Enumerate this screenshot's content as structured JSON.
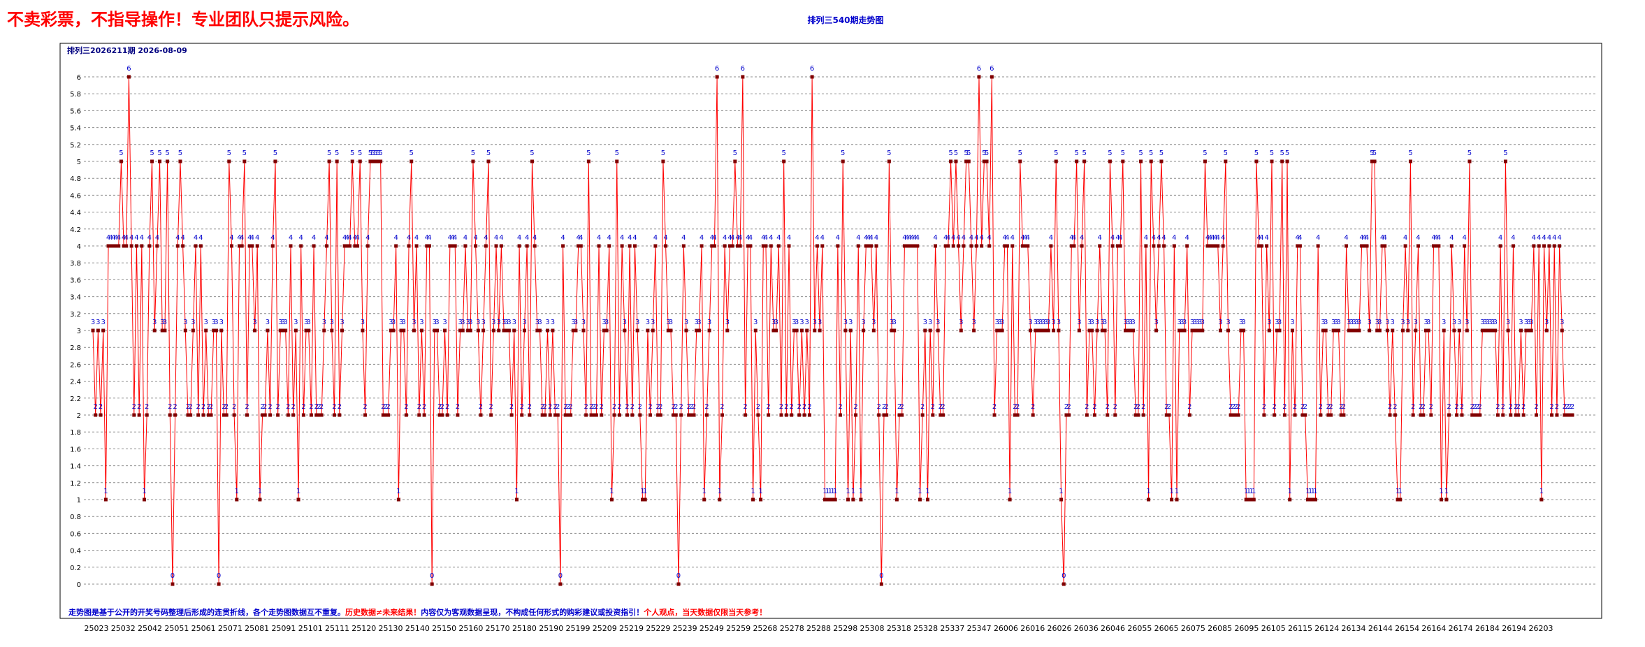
{
  "warning": "不卖彩票，不指导操作！专业团队只提示风险。",
  "chart_title": "排列三540期走势图",
  "chart_data": {
    "type": "line",
    "title": "排列三540期走势图",
    "subtitle": "排列三2026211期  2026-08-09",
    "y_ticks": [
      "0",
      "0.2",
      "0.4",
      "0.6",
      "0.8",
      "1",
      "1.2",
      "1.4",
      "1.6",
      "1.8",
      "2",
      "2.2",
      "2.4",
      "2.6",
      "2.8",
      "3",
      "3.2",
      "3.4",
      "3.6",
      "3.8",
      "4",
      "4.2",
      "4.4",
      "4.6",
      "4.8",
      "5",
      "5.2",
      "5.4",
      "5.6",
      "5.8",
      "6"
    ],
    "ylim": [
      0,
      6
    ],
    "grid": true,
    "x_labels": [
      "25023",
      "25032",
      "25042",
      "25051",
      "25061",
      "25071",
      "25081",
      "25091",
      "25101",
      "25111",
      "25120",
      "25130",
      "25140",
      "25150",
      "25160",
      "25170",
      "25180",
      "25190",
      "25199",
      "25209",
      "25219",
      "25229",
      "25239",
      "25249",
      "25259",
      "25268",
      "25278",
      "25288",
      "25298",
      "25308",
      "25318",
      "25328",
      "25337",
      "25347",
      "26006",
      "26016",
      "26026",
      "26036",
      "26046",
      "26055",
      "26065",
      "26075",
      "26085",
      "26095",
      "26105",
      "26115",
      "26124",
      "26134",
      "26144",
      "26154",
      "26164",
      "26174",
      "26184",
      "26194",
      "26203"
    ],
    "series": [
      {
        "color": "#ff0000",
        "values": [
          3,
          2,
          3,
          2,
          3,
          1,
          4,
          4,
          4,
          4,
          4,
          5,
          4,
          4,
          6,
          4,
          2,
          4,
          2,
          4,
          1,
          2,
          4,
          5,
          3,
          4,
          5,
          3,
          3,
          5,
          2,
          0,
          2,
          4,
          5,
          4,
          3,
          2,
          2,
          3,
          4,
          2,
          4,
          2,
          3,
          2,
          2,
          3,
          3,
          0,
          3,
          2,
          2,
          5,
          4,
          2,
          1,
          4,
          4,
          5,
          2,
          4,
          4,
          3,
          4,
          1,
          2,
          2,
          3,
          2,
          4,
          5,
          2,
          3,
          3,
          3,
          2,
          4,
          2,
          3,
          1,
          4,
          2,
          3,
          3,
          2,
          4,
          2,
          2,
          2,
          3,
          4,
          5,
          3,
          2,
          5,
          2,
          3,
          4,
          4,
          4,
          5,
          4,
          4,
          5,
          3,
          2,
          4,
          5,
          5,
          5,
          5,
          5,
          2,
          2,
          2,
          3,
          3,
          4,
          1,
          3,
          3,
          2,
          4,
          5,
          3,
          4,
          2,
          3,
          2,
          4,
          4,
          0,
          3,
          3,
          2,
          2,
          3,
          2,
          4,
          4,
          4,
          2,
          3,
          3,
          4,
          3,
          3,
          5,
          4,
          3,
          2,
          3,
          4,
          5,
          2,
          3,
          4,
          3,
          4,
          3,
          3,
          3,
          2,
          3,
          1,
          4,
          2,
          3,
          4,
          2,
          5,
          4,
          3,
          3,
          2,
          2,
          3,
          2,
          3,
          2,
          2,
          0,
          4,
          2,
          2,
          2,
          3,
          3,
          4,
          4,
          3,
          2,
          5,
          2,
          2,
          2,
          4,
          2,
          3,
          3,
          4,
          1,
          2,
          5,
          2,
          4,
          3,
          2,
          4,
          2,
          4,
          3,
          2,
          1,
          1,
          3,
          2,
          3,
          4,
          2,
          2,
          5,
          4,
          3,
          3,
          2,
          2,
          0,
          2,
          4,
          3,
          2,
          2,
          2,
          3,
          3,
          4,
          1,
          2,
          3,
          4,
          4,
          6,
          1,
          2,
          4,
          3,
          4,
          4,
          5,
          4,
          4,
          6,
          2,
          4,
          4,
          1,
          3,
          2,
          1,
          4,
          4,
          2,
          4,
          3,
          3,
          4,
          2,
          5,
          2,
          4,
          2,
          3,
          3,
          2,
          3,
          2,
          3,
          2,
          6,
          3,
          4,
          3,
          4,
          1,
          1,
          1,
          1,
          1,
          4,
          2,
          5,
          3,
          1,
          3,
          1,
          2,
          4,
          1,
          3,
          4,
          4,
          4,
          3,
          4,
          2,
          0,
          2,
          2,
          5,
          3,
          3,
          1,
          2,
          2,
          4,
          4,
          4,
          4,
          4,
          4,
          1,
          2,
          3,
          1,
          3,
          2,
          4,
          3,
          2,
          2,
          4,
          4,
          5,
          4,
          5,
          4,
          3,
          4,
          5,
          5,
          4,
          3,
          4,
          6,
          4,
          5,
          5,
          4,
          6,
          2,
          3,
          3,
          3,
          4,
          4,
          1,
          4,
          2,
          2,
          5,
          4,
          4,
          4,
          3,
          2,
          3,
          3,
          3,
          3,
          3,
          3,
          4,
          3,
          5,
          3,
          1,
          0,
          2,
          2,
          4,
          4,
          5,
          3,
          4,
          5,
          2,
          3,
          3,
          2,
          3,
          4,
          3,
          3,
          2,
          5,
          4,
          2,
          4,
          4,
          5,
          3,
          3,
          3,
          3,
          2,
          2,
          5,
          2,
          4,
          1,
          5,
          4,
          3,
          4,
          5,
          4,
          2,
          2,
          1,
          4,
          1,
          3,
          3,
          3,
          4,
          2,
          3,
          3,
          3,
          3,
          3,
          5,
          4,
          4,
          4,
          4,
          4,
          3,
          4,
          5,
          3,
          2,
          2,
          2,
          2,
          3,
          3,
          1,
          1,
          1,
          1,
          5,
          4,
          4,
          2,
          4,
          3,
          5,
          2,
          3,
          3,
          5,
          2,
          5,
          1,
          3,
          2,
          4,
          4,
          2,
          2,
          1,
          1,
          1,
          1,
          4,
          2,
          3,
          3,
          2,
          2,
          3,
          3,
          3,
          2,
          2,
          4,
          3,
          3,
          3,
          3,
          3,
          4,
          4,
          4,
          3,
          5,
          5,
          3,
          3,
          4,
          4,
          3,
          2,
          3,
          2,
          1,
          1,
          3,
          4,
          3,
          5,
          2,
          3,
          4,
          2,
          2,
          3,
          3,
          2,
          4,
          4,
          4,
          1,
          3,
          1,
          2,
          4,
          3,
          2,
          3,
          2,
          4,
          3,
          5,
          2,
          2,
          2,
          2,
          3,
          3,
          3,
          3,
          3,
          3,
          2,
          4,
          2,
          5,
          3,
          2,
          4,
          2,
          2,
          3,
          2,
          3,
          3,
          3,
          4,
          2,
          4,
          1,
          4,
          3,
          4,
          2,
          4,
          2,
          4,
          3,
          2,
          2,
          2,
          2
        ]
      }
    ]
  }
}
